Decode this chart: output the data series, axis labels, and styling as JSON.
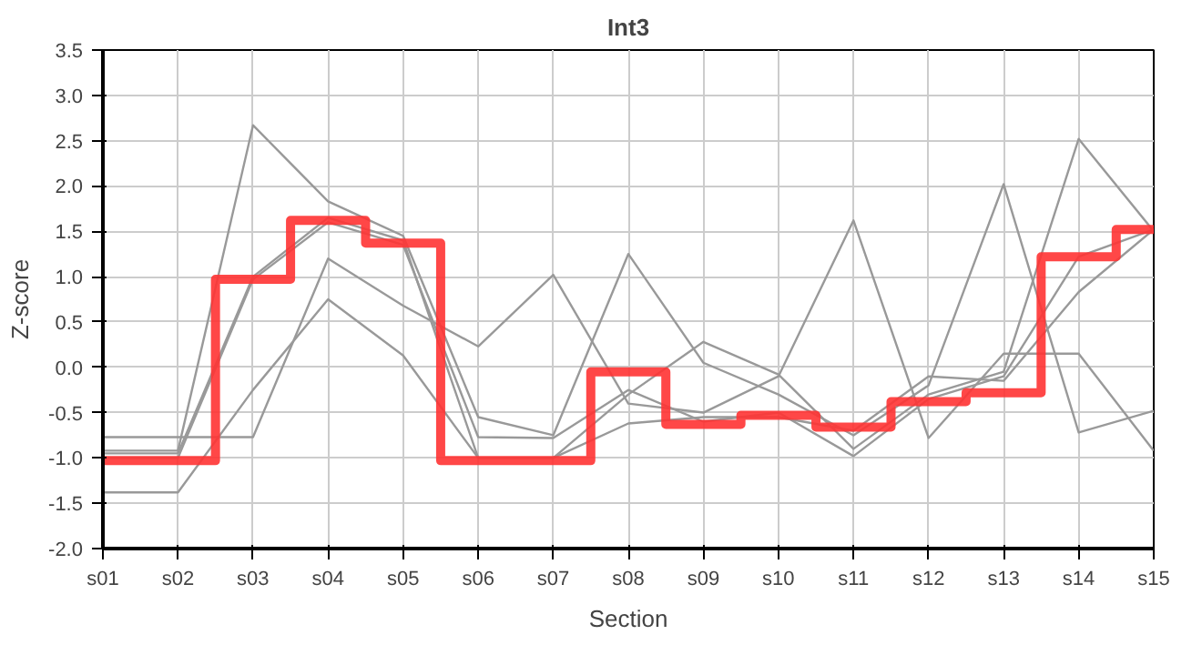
{
  "chart_data": {
    "type": "line",
    "title": "Int3",
    "xlabel": "Section",
    "ylabel": "Z-score",
    "categories": [
      "s01",
      "s02",
      "s03",
      "s04",
      "s05",
      "s06",
      "s07",
      "s08",
      "s09",
      "s10",
      "s11",
      "s12",
      "s13",
      "s14",
      "s15"
    ],
    "series": [
      {
        "color": "#999999",
        "values": [
          -0.92,
          -0.92,
          2.67,
          1.83,
          1.45,
          -0.55,
          -0.75,
          1.25,
          0.05,
          -0.3,
          -0.75,
          -0.2,
          2.02,
          -0.72,
          -0.48
        ]
      },
      {
        "color": "#999999",
        "values": [
          -0.77,
          -0.77,
          -0.77,
          1.2,
          0.68,
          0.23,
          1.02,
          -0.4,
          -0.5,
          -0.1,
          1.62,
          -0.78,
          0.15,
          0.15,
          -0.92
        ]
      },
      {
        "color": "#999999",
        "values": [
          -0.95,
          -0.95,
          1.0,
          1.65,
          1.4,
          -1.0,
          -1.0,
          -0.3,
          0.28,
          -0.08,
          -0.9,
          -0.3,
          -0.05,
          2.52,
          1.5
        ]
      },
      {
        "color": "#999999",
        "values": [
          -1.0,
          -1.0,
          0.97,
          1.6,
          1.35,
          -0.77,
          -0.78,
          -0.25,
          -0.6,
          -0.5,
          -0.98,
          -0.35,
          -0.1,
          1.22,
          1.52
        ]
      },
      {
        "color": "#999999",
        "values": [
          -1.38,
          -1.38,
          -0.25,
          0.75,
          0.13,
          -1.0,
          -1.0,
          -0.62,
          -0.55,
          -0.55,
          -0.7,
          -0.1,
          -0.15,
          0.83,
          1.52
        ]
      },
      {
        "type": "step",
        "color": "#ff3333",
        "values": [
          -1.03,
          -1.03,
          0.97,
          1.62,
          1.37,
          -1.03,
          -1.03,
          -0.05,
          -0.63,
          -0.53,
          -0.66,
          -0.38,
          -0.28,
          1.22,
          1.52
        ]
      }
    ],
    "ylim": [
      -2.0,
      3.5
    ],
    "yticks": [
      {
        "value": -2.0,
        "label": "-2.0"
      },
      -1.5,
      {
        "value": -1.0,
        "label": "-1.0"
      },
      -0.5,
      {
        "value": 0.0,
        "label": "0.0"
      },
      0.5,
      {
        "value": 1.0,
        "label": "1.0"
      },
      1.5,
      {
        "value": 2.0,
        "label": "2.0"
      },
      2.5,
      {
        "value": 3.0,
        "label": "3.0"
      },
      3.5
    ],
    "grid": true
  }
}
